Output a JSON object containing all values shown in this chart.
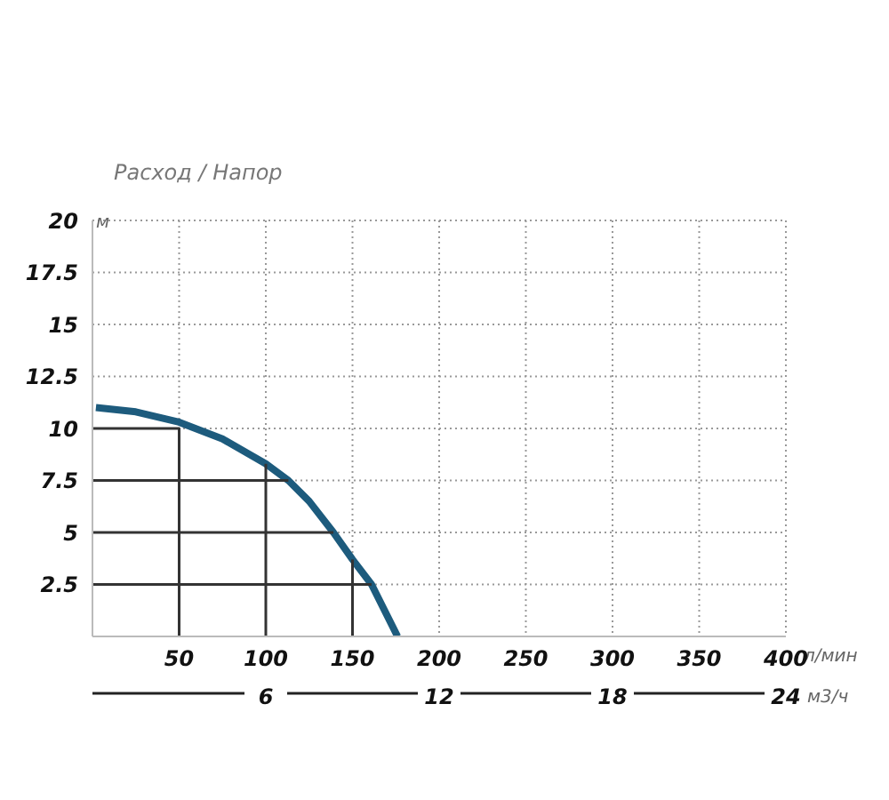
{
  "chart_data": {
    "type": "line",
    "title": "Расход / Напор",
    "ylabel": "м",
    "xlabel": "л/мин",
    "x2label": "м3/ч",
    "xlim": [
      0,
      400
    ],
    "xticks": [
      {
        "value": 0,
        "label": null
      },
      50,
      100,
      150,
      200,
      250,
      300,
      350,
      400
    ],
    "x2lim": [
      0,
      24
    ],
    "x2ticks": [
      6,
      12,
      18,
      24
    ],
    "ylim": [
      0,
      20
    ],
    "yticks": [
      {
        "value": 0,
        "label": null
      },
      2.5,
      5,
      7.5,
      10,
      12.5,
      15,
      17.5,
      20
    ],
    "grid": true,
    "marker": "none",
    "line_style": "solid",
    "series": [
      {
        "color": "#1d5b7d",
        "x": [
          2,
          25,
          50,
          75,
          100,
          113,
          125,
          139,
          150,
          161,
          176
        ],
        "values": [
          11.0,
          10.8,
          10.3,
          9.5,
          8.3,
          7.5,
          6.5,
          5.0,
          3.7,
          2.5,
          0
        ]
      },
      {
        "color": "#333333",
        "x": [
          0,
          50,
          50
        ],
        "values": [
          10,
          10,
          0
        ]
      },
      {
        "color": "#333333",
        "x": [
          0,
          113
        ],
        "values": [
          7.5,
          7.5
        ]
      },
      {
        "color": "#333333",
        "x": [
          100,
          100
        ],
        "values": [
          8.3,
          0
        ]
      },
      {
        "color": "#333333",
        "x": [
          0,
          139
        ],
        "values": [
          5,
          5
        ]
      },
      {
        "color": "#333333",
        "x": [
          150,
          150
        ],
        "values": [
          3.7,
          0
        ]
      },
      {
        "color": "#333333",
        "x": [
          0,
          161
        ],
        "values": [
          2.5,
          2.5
        ]
      }
    ]
  }
}
